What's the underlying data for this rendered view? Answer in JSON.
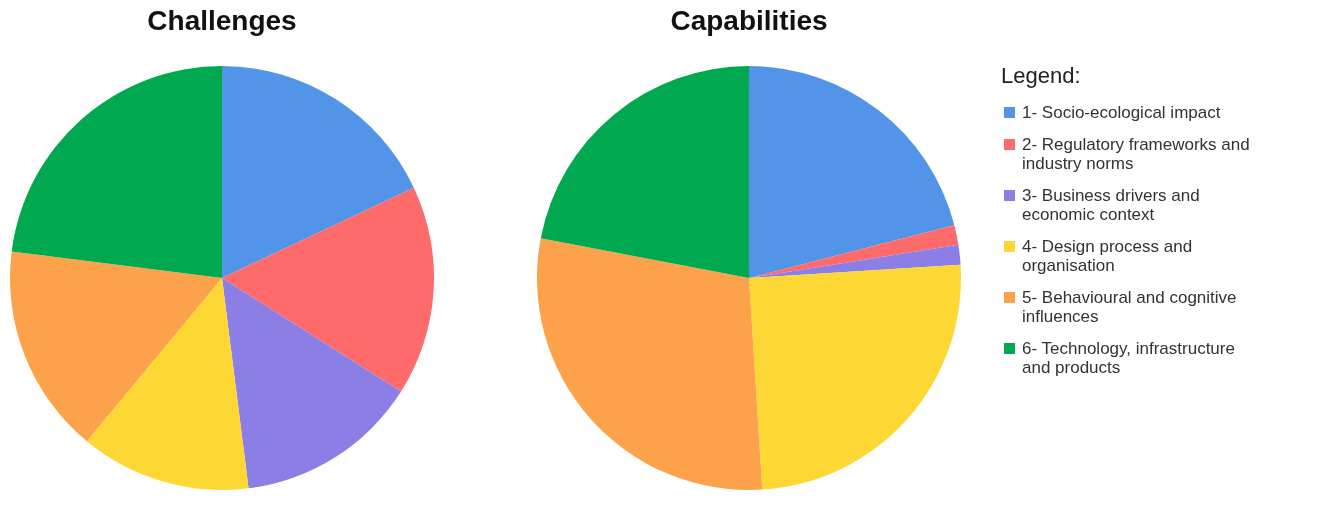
{
  "chart_data": [
    {
      "type": "pie",
      "title": "Challenges",
      "legend_title": "Legend:",
      "legend": "right",
      "categories": [
        "1- Socio-ecological impact",
        "2- Regulatory frameworks and industry norms",
        "3- Business drivers and economic context",
        "4- Design process and organisation",
        "5- Behavioural and cognitive influences",
        "6- Technology, infrastructure and products"
      ],
      "values": [
        18,
        16,
        14,
        13,
        16,
        23
      ],
      "colors": [
        "#5294e8",
        "#ff6b6b",
        "#8b7fe6",
        "#fdd835",
        "#fba24a",
        "#00a94f"
      ]
    },
    {
      "type": "pie",
      "title": "Capabilities",
      "categories": [
        null,
        null,
        null,
        null,
        null,
        null
      ],
      "values": [
        21,
        1.5,
        1.5,
        25,
        29,
        22
      ],
      "colors": [
        "#5294e8",
        "#ff6b6b",
        "#8b7fe6",
        "#fdd835",
        "#fba24a",
        "#00a94f"
      ]
    }
  ]
}
